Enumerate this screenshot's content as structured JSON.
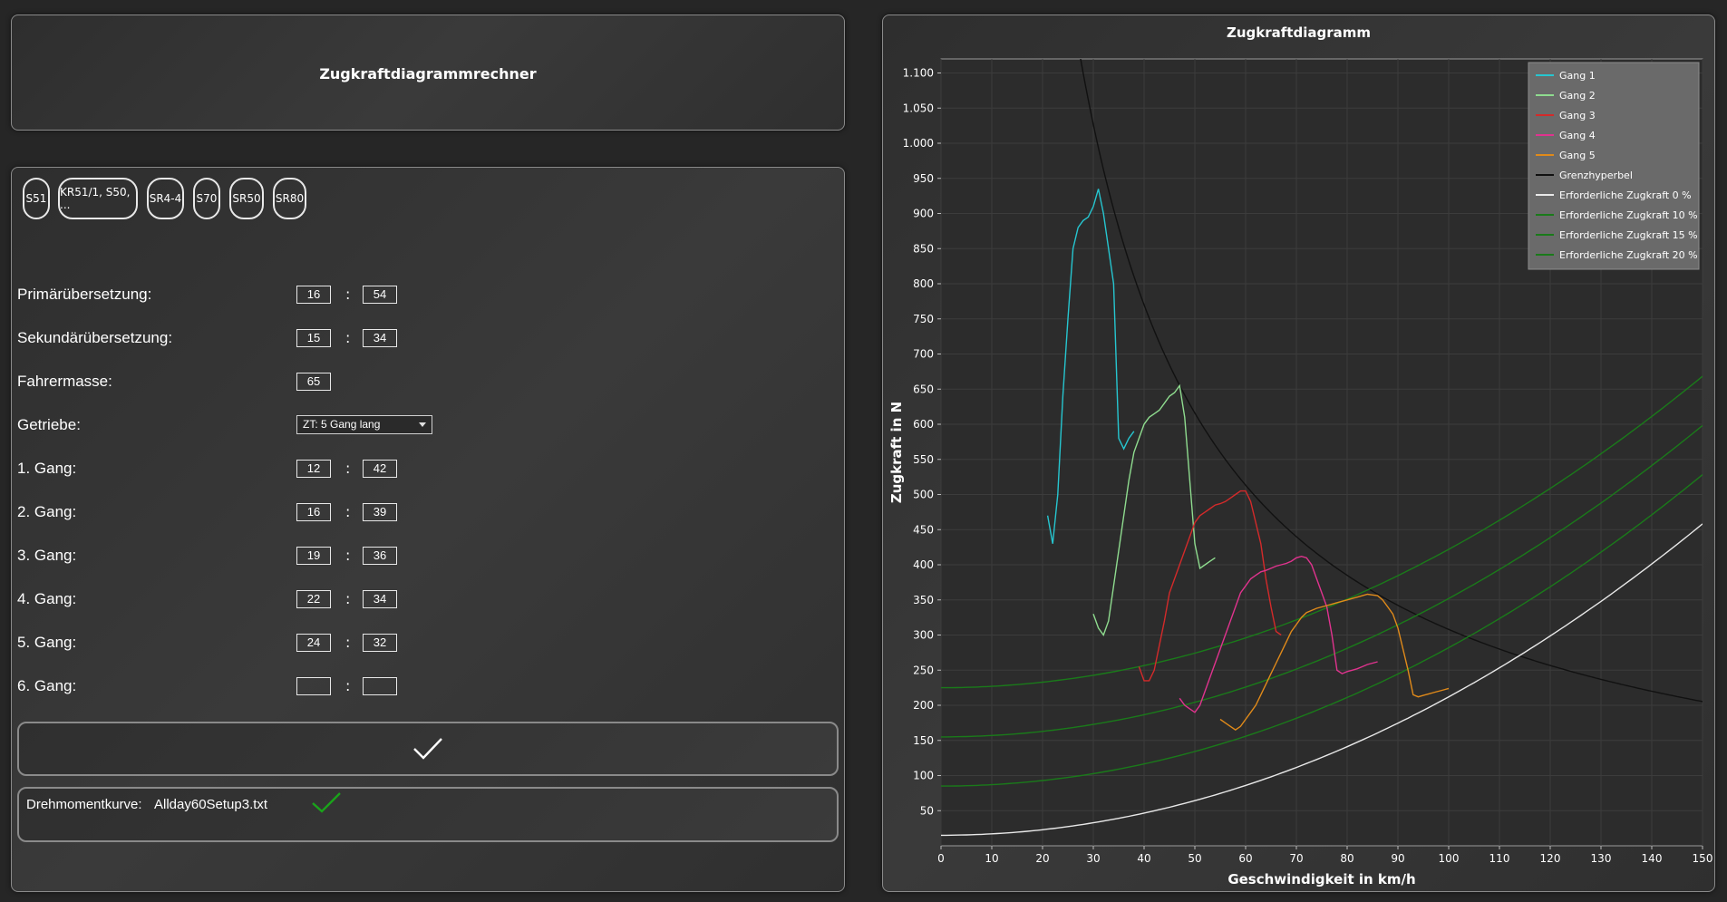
{
  "header": {
    "title": "Zugkraftdiagrammrechner"
  },
  "presets": [
    "S51",
    "KR51/1, S50, ...",
    "SR4-4",
    "S70",
    "SR50",
    "SR80"
  ],
  "form": {
    "primary": {
      "label": "Primärübersetzung:",
      "a": "16",
      "b": "54"
    },
    "secondary": {
      "label": "Sekundärübersetzung:",
      "a": "15",
      "b": "34"
    },
    "rider_mass": {
      "label": "Fahrermasse:",
      "value": "65"
    },
    "gearbox": {
      "label": "Getriebe:",
      "value": "ZT: 5 Gang lang"
    },
    "gears": [
      {
        "label": "1. Gang:",
        "a": "12",
        "b": "42"
      },
      {
        "label": "2. Gang:",
        "a": "16",
        "b": "39"
      },
      {
        "label": "3. Gang:",
        "a": "19",
        "b": "36"
      },
      {
        "label": "4. Gang:",
        "a": "22",
        "b": "34"
      },
      {
        "label": "5. Gang:",
        "a": "24",
        "b": "32"
      },
      {
        "label": "6. Gang:",
        "a": "",
        "b": ""
      }
    ],
    "colon": ":"
  },
  "confirm_icon": "checkmark-icon",
  "torque": {
    "label": "Drehmomentkurve:",
    "file": "Allday60Setup3.txt",
    "status_icon": "green-check-icon",
    "status_color": "#1aa31a"
  },
  "chart_data": {
    "type": "line",
    "title": "Zugkraftdiagramm",
    "xlabel": "Geschwindigkeit in km/h",
    "ylabel": "Zugkraft in N",
    "xlim": [
      0,
      150
    ],
    "ylim": [
      0,
      1120
    ],
    "xticks": [
      "0",
      "10",
      "20",
      "30",
      "40",
      "50",
      "60",
      "70",
      "80",
      "90",
      "100",
      "110",
      "120",
      "130",
      "140",
      "150"
    ],
    "yticks": [
      "50",
      "100",
      "150",
      "200",
      "250",
      "300",
      "350",
      "400",
      "450",
      "500",
      "550",
      "600",
      "650",
      "700",
      "750",
      "800",
      "850",
      "900",
      "950",
      "1.000",
      "1.050",
      "1.100"
    ],
    "grid": true,
    "legend_position": "top-right",
    "series": [
      {
        "name": "Gang 1",
        "color": "#26c6d0",
        "x": [
          21,
          22,
          23,
          24,
          25,
          26,
          27,
          28,
          29,
          30,
          31,
          32,
          33,
          34,
          35,
          36,
          37,
          38
        ],
        "y": [
          470,
          430,
          500,
          640,
          750,
          850,
          880,
          890,
          895,
          910,
          935,
          900,
          850,
          800,
          580,
          565,
          580,
          590
        ]
      },
      {
        "name": "Gang 2",
        "color": "#8fdc8f",
        "x": [
          30,
          31,
          32,
          33,
          34,
          35,
          36,
          37,
          38,
          39,
          40,
          41,
          42,
          43,
          44,
          45,
          46,
          47,
          48,
          49,
          50,
          51,
          52,
          53,
          54
        ],
        "y": [
          330,
          310,
          300,
          320,
          370,
          420,
          470,
          520,
          560,
          580,
          600,
          610,
          615,
          620,
          630,
          640,
          645,
          655,
          610,
          520,
          430,
          395,
          400,
          405,
          410
        ]
      },
      {
        "name": "Gang 3",
        "color": "#d42a2a",
        "x": [
          39,
          40,
          41,
          42,
          43,
          44,
          45,
          46,
          47,
          48,
          49,
          50,
          51,
          52,
          53,
          54,
          55,
          56,
          57,
          58,
          59,
          60,
          61,
          62,
          63,
          64,
          65,
          66,
          67
        ],
        "y": [
          255,
          235,
          235,
          250,
          285,
          320,
          360,
          380,
          400,
          420,
          440,
          460,
          470,
          475,
          480,
          485,
          487,
          490,
          495,
          500,
          505,
          505,
          490,
          460,
          430,
          380,
          340,
          305,
          300
        ]
      },
      {
        "name": "Gang 4",
        "color": "#e0338e",
        "x": [
          47,
          48,
          49,
          50,
          51,
          52,
          53,
          54,
          55,
          56,
          57,
          58,
          59,
          60,
          61,
          62,
          63,
          64,
          65,
          66,
          67,
          68,
          69,
          70,
          71,
          72,
          73,
          74,
          75,
          76,
          77,
          78,
          79,
          80,
          81,
          82,
          83,
          84,
          85,
          86
        ],
        "y": [
          210,
          200,
          195,
          190,
          200,
          220,
          240,
          260,
          280,
          300,
          320,
          340,
          360,
          370,
          380,
          385,
          390,
          392,
          395,
          398,
          400,
          402,
          405,
          410,
          412,
          410,
          400,
          380,
          360,
          340,
          300,
          250,
          245,
          248,
          250,
          252,
          255,
          258,
          260,
          262
        ]
      },
      {
        "name": "Gang 5",
        "color": "#e08a1a",
        "x": [
          55,
          56,
          57,
          58,
          59,
          60,
          61,
          62,
          63,
          64,
          65,
          66,
          67,
          68,
          69,
          70,
          71,
          72,
          73,
          74,
          75,
          76,
          77,
          78,
          79,
          80,
          81,
          82,
          83,
          84,
          85,
          86,
          87,
          88,
          89,
          90,
          91,
          92,
          93,
          94,
          95,
          96,
          97,
          98,
          99,
          100
        ],
        "y": [
          180,
          175,
          170,
          165,
          170,
          180,
          190,
          200,
          215,
          230,
          245,
          260,
          275,
          290,
          305,
          315,
          325,
          332,
          335,
          338,
          340,
          342,
          344,
          346,
          348,
          350,
          352,
          354,
          356,
          358,
          357,
          356,
          350,
          340,
          330,
          310,
          280,
          250,
          215,
          212,
          214,
          216,
          218,
          220,
          222,
          224
        ]
      },
      {
        "name": "Grenzhyperbel",
        "color": "#111111",
        "kind": "hyperbola",
        "k": 30800
      },
      {
        "name": "Erforderliche Zugkraft 0 %",
        "color": "#e8e8e8",
        "kind": "resistance",
        "base": 15,
        "quad": 0.0197
      },
      {
        "name": "Erforderliche Zugkraft 10 %",
        "color": "#1a7a1a",
        "kind": "resistance",
        "base": 85,
        "quad": 0.0197
      },
      {
        "name": "Erforderliche Zugkraft 15 %",
        "color": "#1a7a1a",
        "kind": "resistance",
        "base": 155,
        "quad": 0.0197
      },
      {
        "name": "Erforderliche Zugkraft 20 %",
        "color": "#1a7a1a",
        "kind": "resistance",
        "base": 225,
        "quad": 0.0197
      }
    ]
  }
}
